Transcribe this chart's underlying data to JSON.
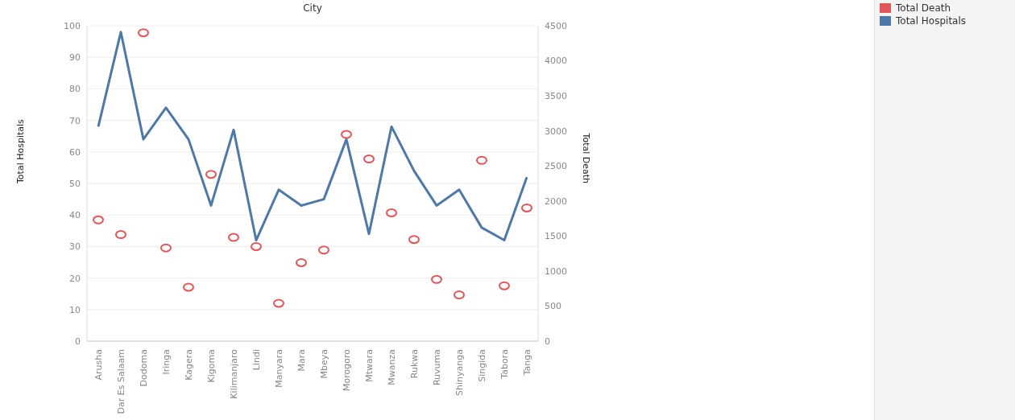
{
  "chart_data": {
    "type": "line",
    "xlabel": "City",
    "ylabel": "Total Hospitals",
    "y2label": "Total Death",
    "categories": [
      "Arusha",
      "Dar Es Salaam",
      "Dodoma",
      "Iringa",
      "Kagera",
      "Kigoma",
      "Kilimanjaro",
      "Lindi",
      "Manyara",
      "Mara",
      "Mbeya",
      "Morogoro",
      "Mtwara",
      "Mwanza",
      "Rukwa",
      "Ruvuma",
      "Shinyanga",
      "Singida",
      "Tabora",
      "Tanga"
    ],
    "series": [
      {
        "name": "Total Death",
        "type": "scatter",
        "axis": "y2",
        "marker": "circle",
        "color": "#e15759",
        "values": [
          1730,
          1520,
          4400,
          1330,
          770,
          2380,
          1480,
          1350,
          540,
          1120,
          1300,
          2950,
          2600,
          1830,
          1450,
          880,
          660,
          2580,
          790,
          1900
        ]
      },
      {
        "name": "Total Hospitals",
        "color": "#4e79a7",
        "values": [
          68,
          98,
          64,
          74,
          64,
          43,
          67,
          32,
          48,
          43,
          45,
          64,
          34,
          68,
          54,
          43,
          48,
          36,
          32,
          52
        ]
      }
    ],
    "ylim": [
      0,
      100
    ],
    "yticks": [
      0,
      10,
      20,
      30,
      40,
      50,
      60,
      70,
      80,
      90,
      100
    ],
    "y2lim": [
      0,
      4500
    ],
    "y2ticks": [
      0,
      500,
      1000,
      1500,
      2000,
      2500,
      3000,
      3500,
      4000,
      4500
    ],
    "grid": "y",
    "legend": "top right"
  }
}
